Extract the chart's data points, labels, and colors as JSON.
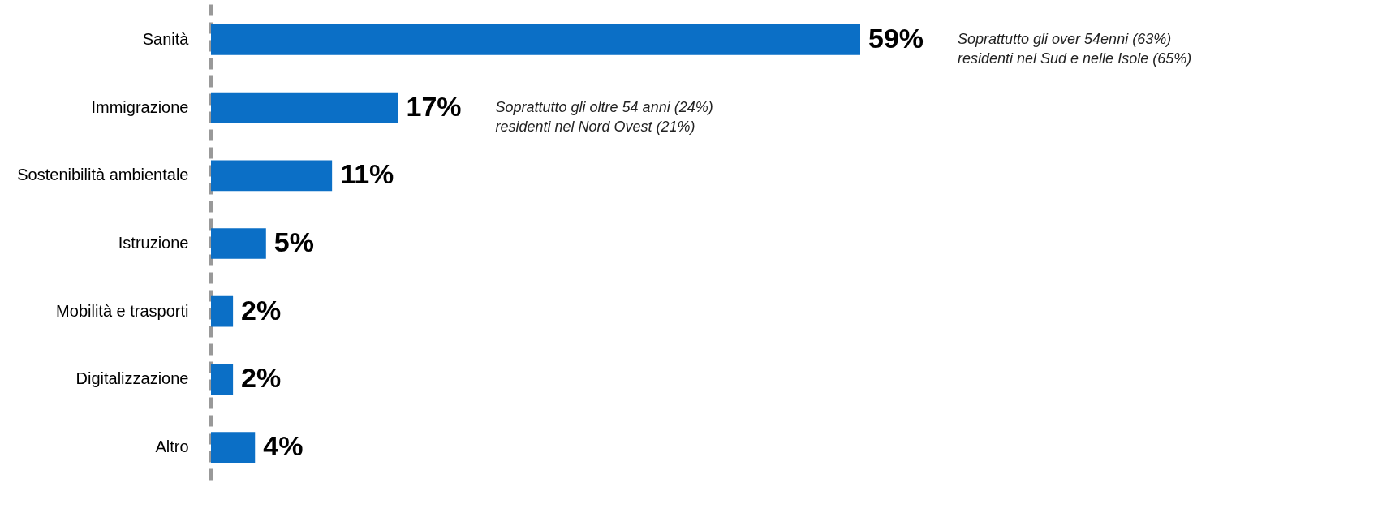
{
  "chart_data": {
    "type": "bar",
    "orientation": "horizontal",
    "categories": [
      "Sanità",
      "Immigrazione",
      "Sostenibilità ambientale",
      "Istruzione",
      "Mobilità e trasporti",
      "Digitalizzazione",
      "Altro"
    ],
    "values": [
      59,
      17,
      11,
      5,
      2,
      2,
      4
    ],
    "value_labels": [
      "59%",
      "17%",
      "11%",
      "5%",
      "2%",
      "2%",
      "4%"
    ],
    "color": "#0b6fc6",
    "grid": false,
    "annotations": [
      "Soprattutto gli over 54enni (63%) residenti nel Sud e nelle Isole (65%)",
      "Soprattutto gli oltre 54 anni (24%) residenti nel Nord Ovest (21%)"
    ]
  }
}
